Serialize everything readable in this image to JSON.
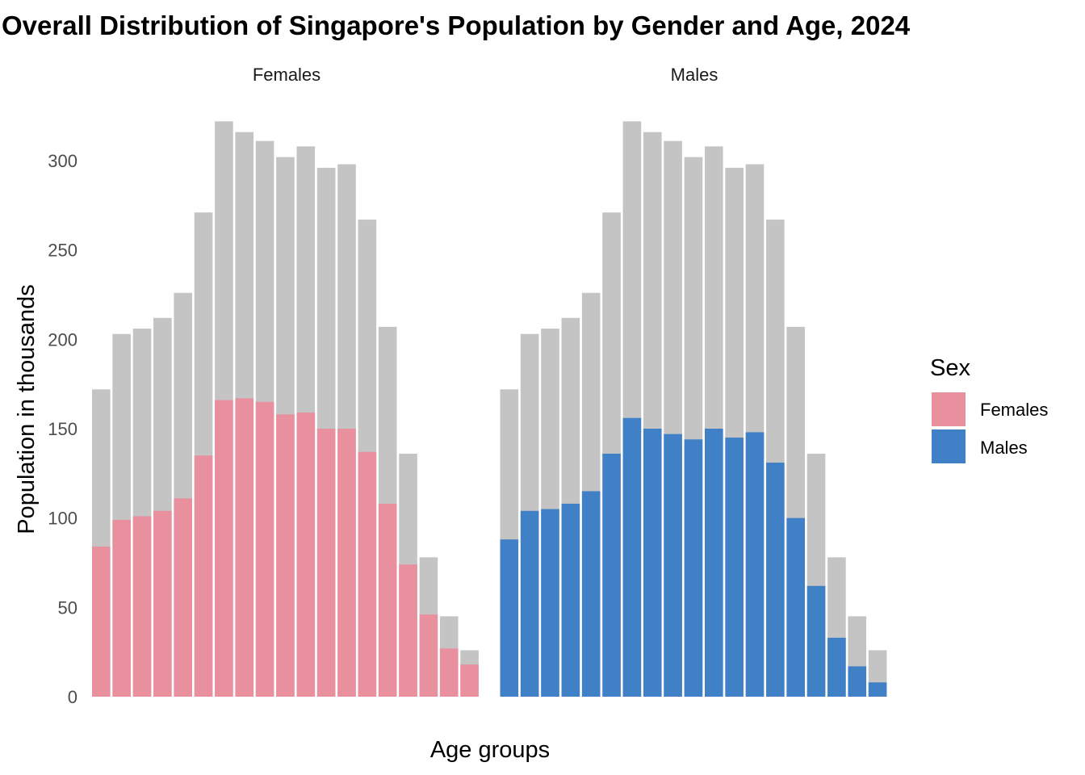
{
  "chart_data": {
    "type": "bar",
    "title": "Overall Distribution of Singapore's Population by Gender and Age, 2024",
    "xlabel": "Age groups",
    "ylabel": "Population in thousands",
    "ylim": [
      0,
      325
    ],
    "yticks": [
      0,
      50,
      100,
      150,
      200,
      250,
      300
    ],
    "grid": false,
    "legend": {
      "title": "Sex",
      "position": "right",
      "entries": [
        "Females",
        "Males"
      ]
    },
    "colors": {
      "Females": "#E8909E",
      "Males": "#4080C6",
      "total": "#C4C4C4"
    },
    "panels": [
      "Females",
      "Males"
    ],
    "background_series": {
      "description_hidden": true,
      "values": [
        172,
        203,
        206,
        212,
        226,
        271,
        322,
        316,
        311,
        302,
        308,
        296,
        298,
        267,
        207,
        136,
        78,
        45,
        26
      ]
    },
    "series": [
      {
        "name": "Females",
        "values": [
          84,
          99,
          101,
          104,
          111,
          135,
          166,
          167,
          165,
          158,
          159,
          150,
          150,
          137,
          108,
          74,
          46,
          27,
          18
        ]
      },
      {
        "name": "Males",
        "values": [
          88,
          104,
          105,
          108,
          115,
          136,
          156,
          150,
          147,
          144,
          150,
          145,
          148,
          131,
          100,
          62,
          33,
          17,
          8
        ]
      }
    ]
  }
}
